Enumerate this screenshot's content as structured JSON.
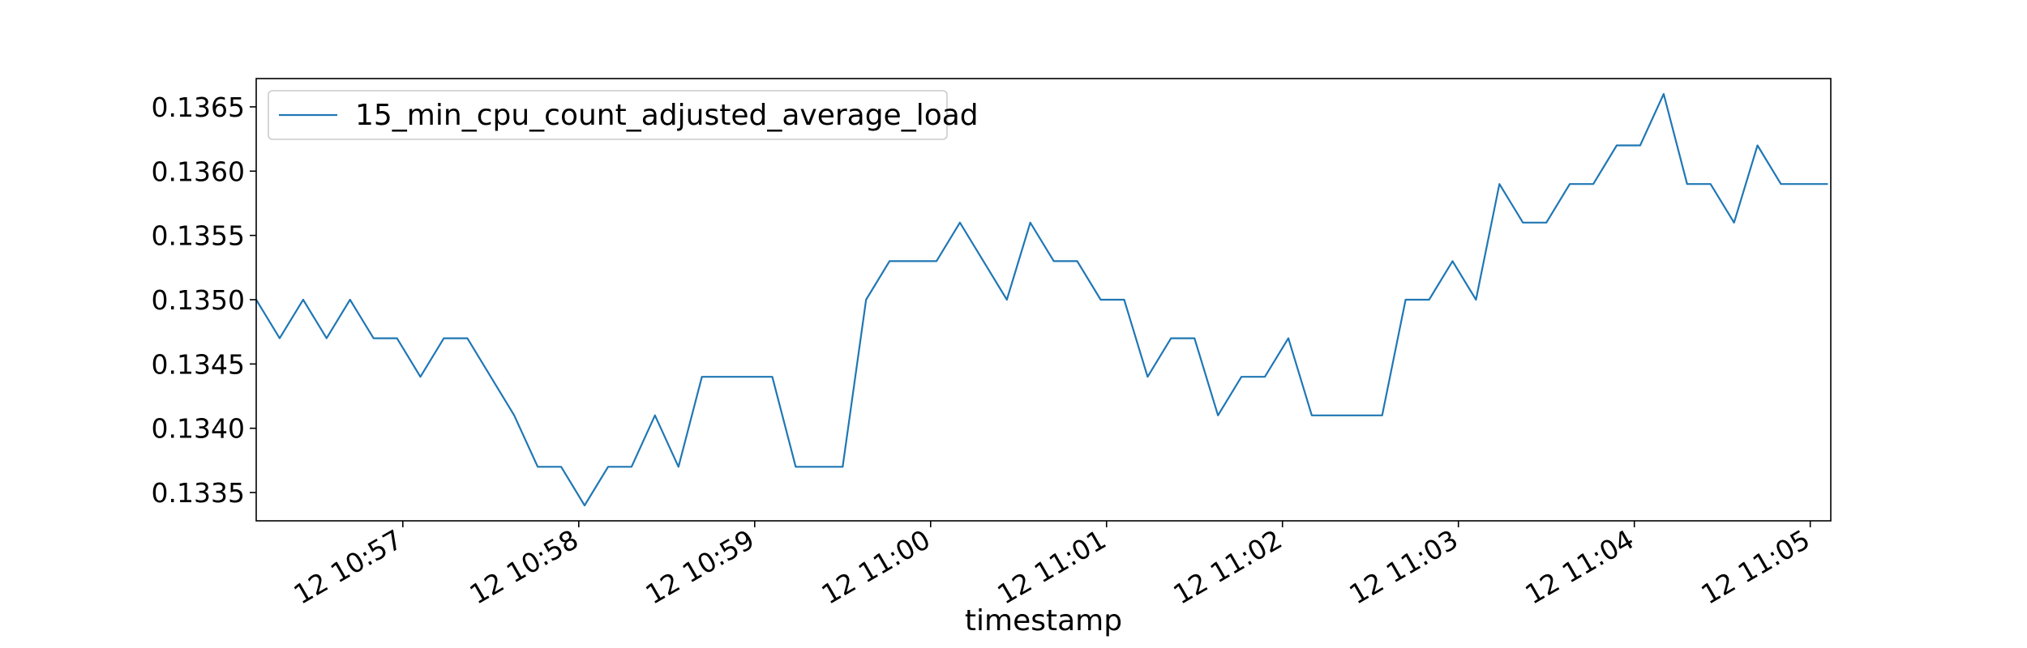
{
  "chart_data": {
    "type": "line",
    "title": "",
    "xlabel": "timestamp",
    "ylabel": "",
    "x_ticks": [
      "12 10:57",
      "12 10:58",
      "12 10:59",
      "12 11:00",
      "12 11:01",
      "12 11:02",
      "12 11:03",
      "12 11:04",
      "12 11:05"
    ],
    "y_ticks": [
      "0.1335",
      "0.1340",
      "0.1345",
      "0.1350",
      "0.1355",
      "0.1360",
      "0.1365"
    ],
    "ylim": [
      0.13328,
      0.13672
    ],
    "grid": false,
    "legend_position": "top-left",
    "colors": {
      "series": "#1f77b4",
      "axis": "#000000",
      "legend_border": "#cccccc"
    },
    "series": [
      {
        "name": "15_min_cpu_count_adjusted_average_load",
        "x": [
          "10:56:10",
          "10:56:18",
          "10:56:26",
          "10:56:34",
          "10:56:42",
          "10:56:50",
          "10:56:58",
          "10:57:06",
          "10:57:14",
          "10:57:22",
          "10:57:30",
          "10:57:38",
          "10:57:46",
          "10:57:54",
          "10:58:02",
          "10:58:10",
          "10:58:18",
          "10:58:26",
          "10:58:34",
          "10:58:42",
          "10:58:50",
          "10:58:58",
          "10:59:06",
          "10:59:14",
          "10:59:22",
          "10:59:30",
          "10:59:38",
          "10:59:46",
          "10:59:54",
          "11:00:02",
          "11:00:10",
          "11:00:18",
          "11:00:26",
          "11:00:34",
          "11:00:42",
          "11:00:50",
          "11:00:58",
          "11:01:06",
          "11:01:14",
          "11:01:22",
          "11:01:30",
          "11:01:38",
          "11:01:46",
          "11:01:54",
          "11:02:02",
          "11:02:10",
          "11:02:18",
          "11:02:26",
          "11:02:34",
          "11:02:42",
          "11:02:50",
          "11:02:58",
          "11:03:06",
          "11:03:14",
          "11:03:22",
          "11:03:30",
          "11:03:38",
          "11:03:46",
          "11:03:54",
          "11:04:02",
          "11:04:10",
          "11:04:18",
          "11:04:26",
          "11:04:34",
          "11:04:42",
          "11:04:50",
          "11:04:58",
          "11:05:06"
        ],
        "values": [
          0.135,
          0.1347,
          0.135,
          0.1347,
          0.135,
          0.1347,
          0.1347,
          0.1344,
          0.1347,
          0.1347,
          0.1344,
          0.1341,
          0.1337,
          0.1337,
          0.1334,
          0.1337,
          0.1337,
          0.1341,
          0.1337,
          0.1344,
          0.1344,
          0.1344,
          0.1344,
          0.1337,
          0.1337,
          0.1337,
          0.135,
          0.1353,
          0.1353,
          0.1353,
          0.1356,
          0.1353,
          0.135,
          0.1356,
          0.1353,
          0.1353,
          0.135,
          0.135,
          0.1344,
          0.1347,
          0.1347,
          0.1341,
          0.1344,
          0.1344,
          0.1347,
          0.1341,
          0.1341,
          0.1341,
          0.1341,
          0.135,
          0.135,
          0.1353,
          0.135,
          0.1359,
          0.1356,
          0.1356,
          0.1359,
          0.1359,
          0.1362,
          0.1362,
          0.1366,
          0.1359,
          0.1359,
          0.1356,
          0.1362,
          0.1359,
          0.1359,
          0.1359
        ]
      }
    ]
  }
}
